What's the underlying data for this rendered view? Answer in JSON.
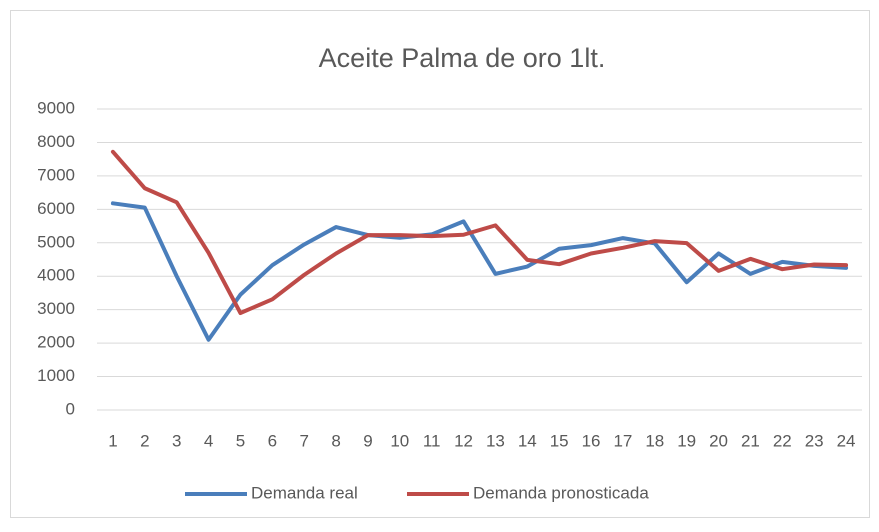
{
  "chart_data": {
    "type": "line",
    "title": "Aceite Palma de oro 1lt.",
    "categories": [
      "1",
      "2",
      "3",
      "4",
      "5",
      "6",
      "7",
      "8",
      "9",
      "10",
      "11",
      "12",
      "13",
      "14",
      "15",
      "16",
      "17",
      "18",
      "19",
      "20",
      "21",
      "22",
      "23",
      "24"
    ],
    "series": [
      {
        "name": "Demanda real",
        "color": "#4a7ebb",
        "values": [
          6180,
          6050,
          4000,
          2100,
          3450,
          4330,
          4950,
          5470,
          5230,
          5150,
          5250,
          5640,
          4070,
          4290,
          4820,
          4930,
          5140,
          4980,
          3820,
          4680,
          4070,
          4430,
          4310,
          4250
        ]
      },
      {
        "name": "Demanda pronosticada",
        "color": "#be4b48",
        "values": [
          7720,
          6630,
          6210,
          4700,
          2900,
          3310,
          4040,
          4680,
          5230,
          5230,
          5200,
          5240,
          5520,
          4490,
          4360,
          4680,
          4850,
          5050,
          4990,
          4160,
          4520,
          4210,
          4350,
          4330
        ]
      }
    ],
    "ylim": [
      0,
      9000
    ],
    "yticks": [
      0,
      1000,
      2000,
      3000,
      4000,
      5000,
      6000,
      7000,
      8000,
      9000
    ],
    "grid": true,
    "legend": "bottom"
  }
}
